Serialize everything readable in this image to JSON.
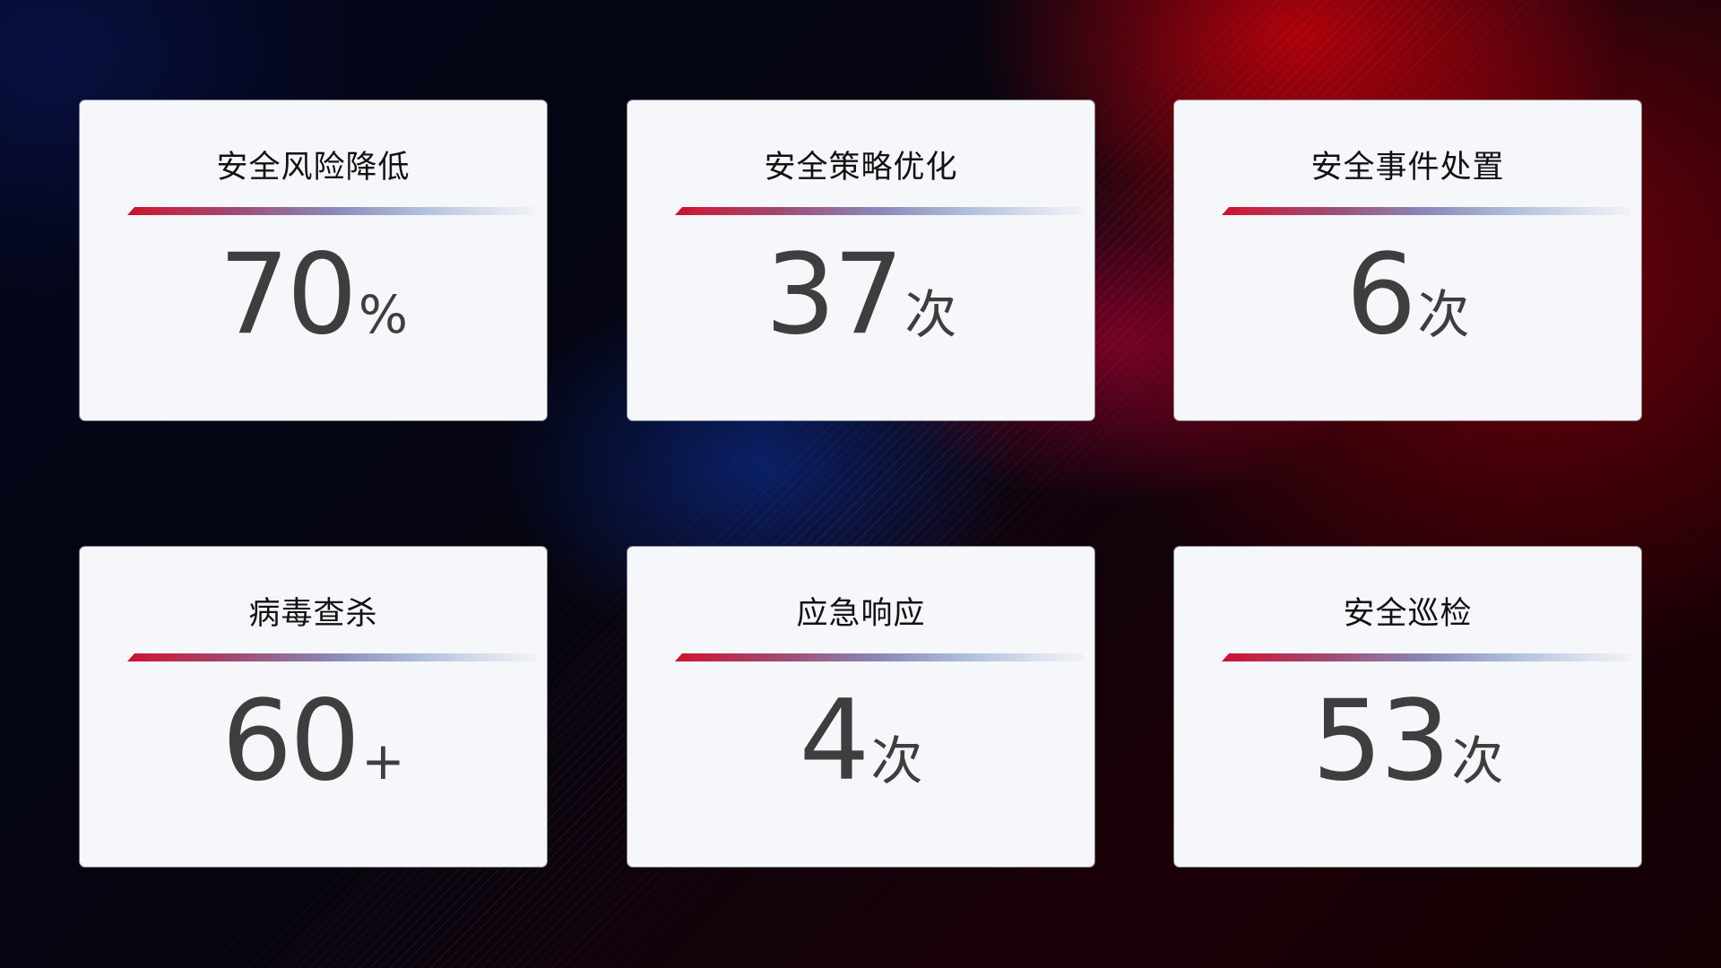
{
  "cards": [
    {
      "title": "安全风险降低",
      "value": "70",
      "unit": "%"
    },
    {
      "title": "安全策略优化",
      "value": "37",
      "unit": "次"
    },
    {
      "title": "安全事件处置",
      "value": "6",
      "unit": "次"
    },
    {
      "title": "病毒查杀",
      "value": "60",
      "unit": "+"
    },
    {
      "title": "应急响应",
      "value": "4",
      "unit": "次"
    },
    {
      "title": "安全巡检",
      "value": "53",
      "unit": "次"
    }
  ],
  "colors": {
    "accent_red": "#c8102e",
    "accent_blue": "#8a88b8",
    "card_bg": "#f6f7fb",
    "value_text": "#3e3e3e"
  }
}
